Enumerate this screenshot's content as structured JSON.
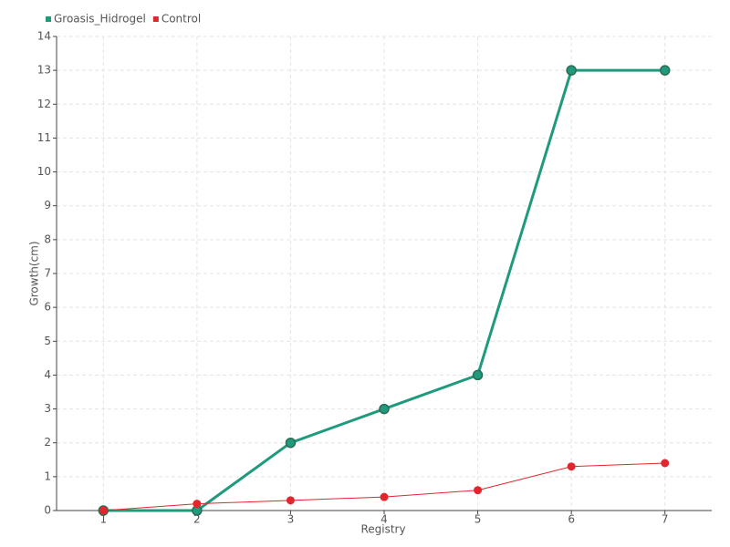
{
  "chart_data": {
    "type": "line",
    "xlabel": "Registry",
    "ylabel": "Growth(cm)",
    "categories": [
      "1",
      "2",
      "3",
      "4",
      "5",
      "6",
      "7"
    ],
    "series": [
      {
        "name": "Groasis_Hidrogel",
        "color": "#1f9a7c",
        "values": [
          0,
          0,
          2,
          3,
          4,
          13,
          13
        ]
      },
      {
        "name": "Control",
        "color": "#e3262e",
        "values": [
          0,
          0.2,
          0.3,
          0.4,
          0.6,
          1.3,
          1.4
        ]
      }
    ],
    "ylim": [
      0,
      14
    ],
    "yticks": [
      0,
      1,
      2,
      3,
      4,
      5,
      6,
      7,
      8,
      9,
      10,
      11,
      12,
      13,
      14
    ],
    "grid": true,
    "legend": "top-left"
  }
}
